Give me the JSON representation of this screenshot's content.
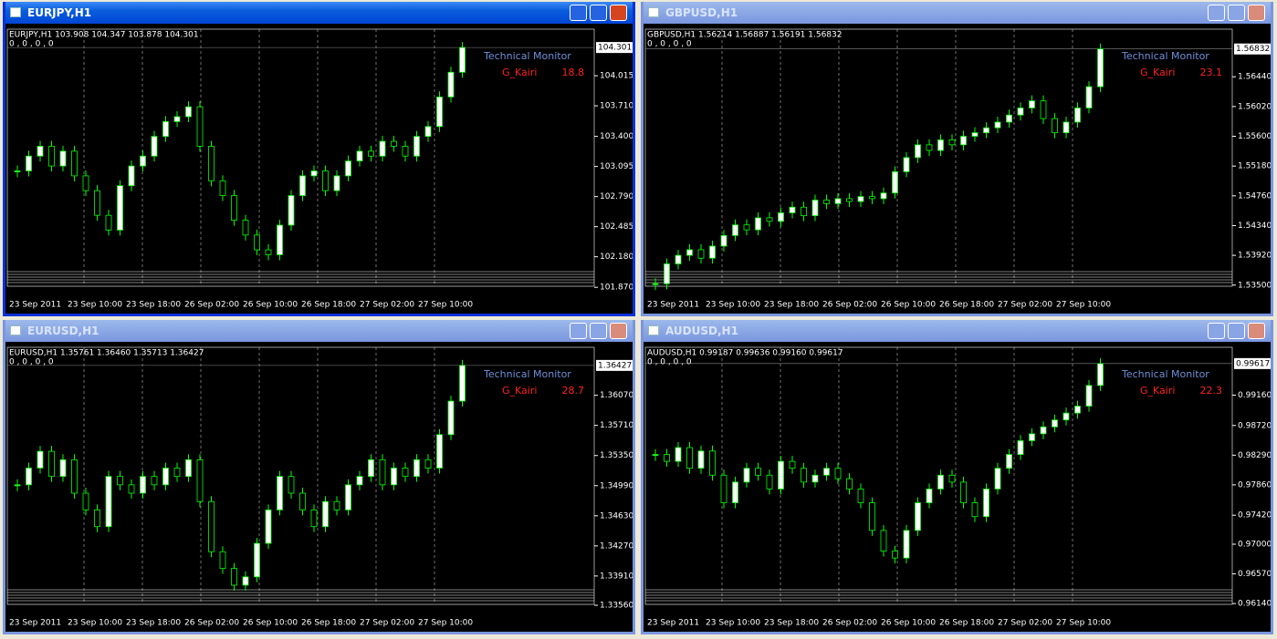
{
  "windows": [
    {
      "title": "EURJPY,H1",
      "info": "EURJPY,H1  103.908 104.347 103.878 104.301",
      "zeros": "0 , 0 , 0 , 0",
      "monitor": "Technical  Monitor",
      "kairi_label": "G_Kairi",
      "kairi_value": 18.8,
      "active": true,
      "current": 104.301,
      "ylim": [
        101.77,
        104.45
      ],
      "price_ticks": [
        {
          "value": 104.015,
          "label": "104.015"
        },
        {
          "value": 103.71,
          "label": "103.710"
        },
        {
          "value": 103.4,
          "label": "103.400"
        },
        {
          "value": 103.095,
          "label": "103.095"
        },
        {
          "value": 102.79,
          "label": "102.790"
        },
        {
          "value": 102.485,
          "label": "102.485"
        },
        {
          "value": 102.18,
          "label": "102.180"
        },
        {
          "value": 101.87,
          "label": "101.870"
        }
      ],
      "time_labels": [
        "23 Sep 2011",
        "23 Sep 10:00",
        "23 Sep 18:00",
        "26 Sep 02:00",
        "26 Sep 10:00",
        "26 Sep 18:00",
        "27 Sep 02:00",
        "27 Sep 10:00"
      ],
      "closes": [
        103.05,
        103.2,
        103.3,
        103.1,
        103.25,
        103.0,
        102.85,
        102.6,
        102.45,
        102.9,
        103.1,
        103.2,
        103.4,
        103.55,
        103.6,
        103.7,
        103.3,
        102.95,
        102.8,
        102.55,
        102.4,
        102.25,
        102.2,
        102.5,
        102.8,
        103.0,
        103.05,
        102.85,
        103.0,
        103.15,
        103.25,
        103.2,
        103.35,
        103.3,
        103.2,
        103.4,
        103.5,
        103.8,
        104.05,
        104.301
      ]
    },
    {
      "title": "GBPUSD,H1",
      "info": "GBPUSD,H1  1.56214 1.56887 1.56191 1.56832",
      "zeros": "0 , 0 , 0 , 0",
      "monitor": "Technical  Monitor",
      "kairi_label": "G_Kairi",
      "kairi_value": 23.1,
      "active": false,
      "current": 1.56832,
      "ylim": [
        1.5333,
        1.5706
      ],
      "price_ticks": [
        {
          "value": 1.5644,
          "label": "1.56440"
        },
        {
          "value": 1.5602,
          "label": "1.56020"
        },
        {
          "value": 1.556,
          "label": "1.55600"
        },
        {
          "value": 1.5518,
          "label": "1.55180"
        },
        {
          "value": 1.5476,
          "label": "1.54760"
        },
        {
          "value": 1.5434,
          "label": "1.54340"
        },
        {
          "value": 1.5392,
          "label": "1.53920"
        },
        {
          "value": 1.535,
          "label": "1.53500"
        }
      ],
      "time_labels": [
        "23 Sep 2011",
        "23 Sep 10:00",
        "23 Sep 18:00",
        "26 Sep 02:00",
        "26 Sep 10:00",
        "26 Sep 18:00",
        "27 Sep 02:00",
        "27 Sep 10:00"
      ],
      "closes": [
        1.5352,
        1.538,
        1.5392,
        1.54,
        1.5388,
        1.5405,
        1.542,
        1.5435,
        1.5428,
        1.5445,
        1.544,
        1.5452,
        1.546,
        1.5448,
        1.547,
        1.5465,
        1.5472,
        1.5468,
        1.5475,
        1.5472,
        1.548,
        1.551,
        1.553,
        1.5548,
        1.554,
        1.5555,
        1.5548,
        1.556,
        1.5565,
        1.5572,
        1.558,
        1.559,
        1.56,
        1.561,
        1.5585,
        1.5565,
        1.558,
        1.56,
        1.563,
        1.56832
      ]
    },
    {
      "title": "EURUSD,H1",
      "info": "EURUSD,H1  1.35761 1.36460 1.35713 1.36427",
      "zeros": "0 , 0 , 0 , 0",
      "monitor": "Technical  Monitor",
      "kairi_label": "G_Kairi",
      "kairi_value": 28.7,
      "active": false,
      "current": 1.36427,
      "ylim": [
        1.3344,
        1.366
      ],
      "price_ticks": [
        {
          "value": 1.3607,
          "label": "1.36070"
        },
        {
          "value": 1.3571,
          "label": "1.35710"
        },
        {
          "value": 1.3535,
          "label": "1.35350"
        },
        {
          "value": 1.3499,
          "label": "1.34990"
        },
        {
          "value": 1.3463,
          "label": "1.34630"
        },
        {
          "value": 1.3427,
          "label": "1.34270"
        },
        {
          "value": 1.3391,
          "label": "1.33910"
        },
        {
          "value": 1.3356,
          "label": "1.33560"
        }
      ],
      "time_labels": [
        "23 Sep 2011",
        "23 Sep 10:00",
        "23 Sep 18:00",
        "26 Sep 02:00",
        "26 Sep 10:00",
        "26 Sep 18:00",
        "27 Sep 02:00",
        "27 Sep 10:00"
      ],
      "closes": [
        1.35,
        1.352,
        1.354,
        1.351,
        1.353,
        1.349,
        1.347,
        1.345,
        1.351,
        1.35,
        1.349,
        1.351,
        1.35,
        1.352,
        1.351,
        1.353,
        1.348,
        1.342,
        1.34,
        1.338,
        1.339,
        1.343,
        1.347,
        1.351,
        1.349,
        1.347,
        1.345,
        1.348,
        1.347,
        1.35,
        1.351,
        1.353,
        1.35,
        1.352,
        1.351,
        1.353,
        1.352,
        1.356,
        1.36,
        1.36427
      ]
    },
    {
      "title": "AUDUSD,H1",
      "info": "AUDUSD,H1  0.99187 0.99636 0.99160 0.99617",
      "zeros": "0 , 0 , 0 , 0",
      "monitor": "Technical  Monitor",
      "kairi_label": "G_Kairi",
      "kairi_value": 22.3,
      "active": false,
      "current": 0.99617,
      "ylim": [
        0.9597,
        0.998
      ],
      "price_ticks": [
        {
          "value": 0.9916,
          "label": "0.99160"
        },
        {
          "value": 0.9872,
          "label": "0.98720"
        },
        {
          "value": 0.9829,
          "label": "0.98290"
        },
        {
          "value": 0.9786,
          "label": "0.97860"
        },
        {
          "value": 0.9742,
          "label": "0.97420"
        },
        {
          "value": 0.97,
          "label": "0.97000"
        },
        {
          "value": 0.9657,
          "label": "0.96570"
        },
        {
          "value": 0.9614,
          "label": "0.96140"
        }
      ],
      "time_labels": [
        "23 Sep 2011",
        "23 Sep 10:00",
        "23 Sep 18:00",
        "26 Sep 02:00",
        "26 Sep 10:00",
        "26 Sep 18:00",
        "27 Sep 02:00",
        "27 Sep 10:00"
      ],
      "closes": [
        0.983,
        0.982,
        0.984,
        0.981,
        0.9835,
        0.98,
        0.976,
        0.979,
        0.981,
        0.98,
        0.978,
        0.982,
        0.981,
        0.979,
        0.98,
        0.981,
        0.9795,
        0.978,
        0.976,
        0.972,
        0.969,
        0.968,
        0.972,
        0.976,
        0.978,
        0.98,
        0.979,
        0.976,
        0.974,
        0.978,
        0.981,
        0.983,
        0.985,
        0.986,
        0.987,
        0.988,
        0.989,
        0.99,
        0.993,
        0.99617
      ]
    }
  ]
}
